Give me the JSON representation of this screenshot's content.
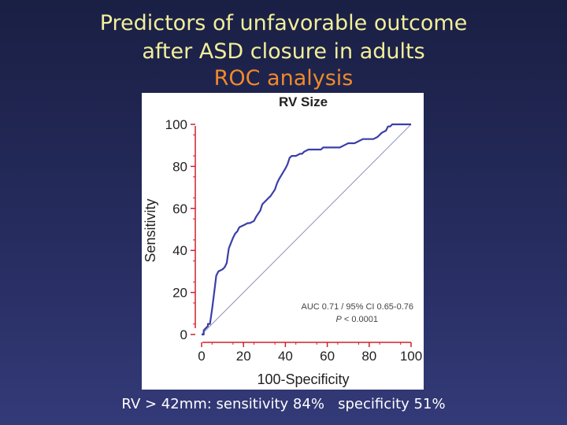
{
  "slide": {
    "title_line1": "Predictors of unfavorable outcome",
    "title_line2": "after ASD closure in adults",
    "title_line3": "ROC analysis",
    "caption_part1": "RV > 42mm: sensitivity 84%",
    "caption_part2": "specificity 51%"
  },
  "colors": {
    "background": "#262c5e",
    "title": "#f2ef9a",
    "subtitle": "#f08a2a",
    "roc_curve": "#3b3ea8",
    "diagonal": "#8a8fc0",
    "axis": "#d0202a"
  },
  "chart_data": {
    "type": "line",
    "title": "RV Size",
    "xlabel": "100-Specificity",
    "ylabel": "Sensitivity",
    "xlim": [
      0,
      100
    ],
    "ylim": [
      0,
      100
    ],
    "xticks": [
      "0",
      "20",
      "40",
      "60",
      "80",
      "100"
    ],
    "yticks": [
      "0",
      "20",
      "40",
      "60",
      "80",
      "100"
    ],
    "grid": false,
    "annotation_line1": "AUC 0.71 / 95% CI 0.65-0.76",
    "annotation_line2_label": "P",
    "annotation_line2_value": " < 0.0001",
    "reference_line": {
      "x": [
        0,
        100
      ],
      "y": [
        0,
        100
      ]
    },
    "series": [
      {
        "x": [
          0,
          1,
          1,
          3,
          3,
          4,
          5,
          6,
          7,
          8,
          10,
          11,
          12,
          13,
          15,
          16,
          17,
          18,
          20,
          22,
          23,
          25,
          26,
          28,
          29,
          31,
          32,
          33,
          35,
          36,
          37,
          40,
          41,
          42,
          43,
          45,
          47,
          48,
          49,
          51,
          52,
          54,
          56,
          57,
          58,
          61,
          63,
          64,
          66,
          68,
          70,
          71,
          73,
          75,
          77,
          79,
          82,
          84,
          86,
          88,
          89,
          90,
          91,
          93,
          94,
          96,
          97,
          99,
          100
        ],
        "y": [
          0,
          0,
          2,
          4,
          5,
          5,
          12,
          20,
          28,
          30,
          31,
          32,
          34,
          41,
          46,
          48,
          49,
          51,
          52,
          53,
          53,
          54,
          56,
          59,
          62,
          64,
          65,
          66,
          69,
          72,
          74,
          79,
          81,
          84,
          85,
          85,
          86,
          86,
          87,
          88,
          88,
          88,
          88,
          88,
          89,
          89,
          89,
          89,
          89,
          90,
          91,
          91,
          91,
          92,
          93,
          93,
          93,
          94,
          96,
          97,
          99,
          99,
          100,
          100,
          100,
          100,
          100,
          100,
          100
        ]
      }
    ]
  }
}
